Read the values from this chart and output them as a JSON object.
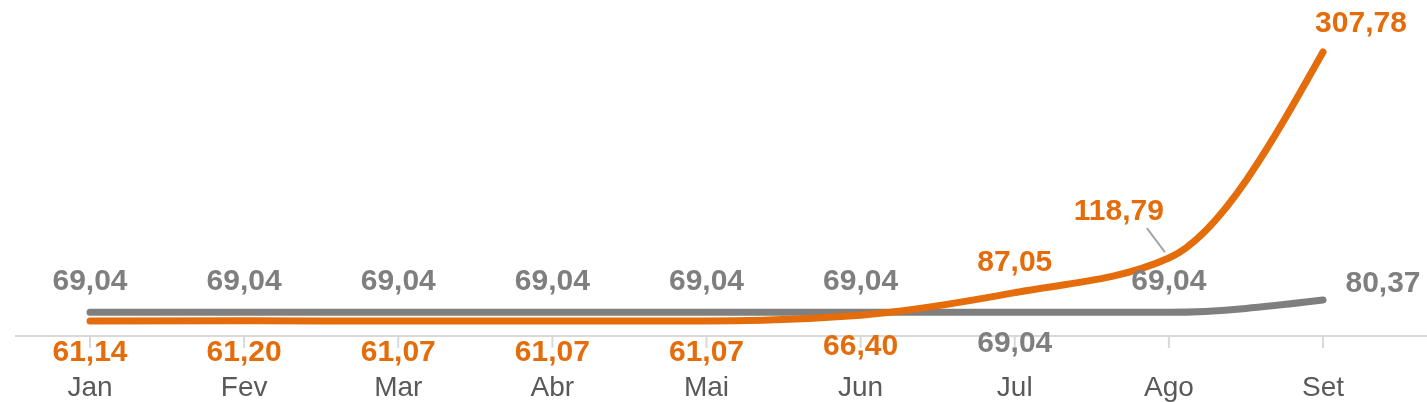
{
  "chart_data": {
    "type": "line",
    "categories": [
      "Jan",
      "Fev",
      "Mar",
      "Abr",
      "Mai",
      "Jun",
      "Jul",
      "Ago",
      "Set"
    ],
    "tick_labels": "x",
    "grid": false,
    "marker": "none",
    "line_style": "solid",
    "series": [
      {
        "color": "#7f7f7f",
        "values": [
          69.04,
          69.04,
          69.04,
          69.04,
          69.04,
          69.04,
          69.04,
          69.04,
          80.37
        ],
        "value_labels": [
          "69,04",
          "69,04",
          "69,04",
          "69,04",
          "69,04",
          "69,04",
          "69,04",
          "69,04",
          "80,37"
        ]
      },
      {
        "color": "#e46c0a",
        "values": [
          61.14,
          61.2,
          61.07,
          61.07,
          61.07,
          66.4,
          87.05,
          118.79,
          307.78
        ],
        "value_labels": [
          "61,14",
          "61,20",
          "61,07",
          "61,07",
          "61,07",
          "66,40",
          "87,05",
          "118,79",
          "307,78"
        ]
      }
    ]
  }
}
